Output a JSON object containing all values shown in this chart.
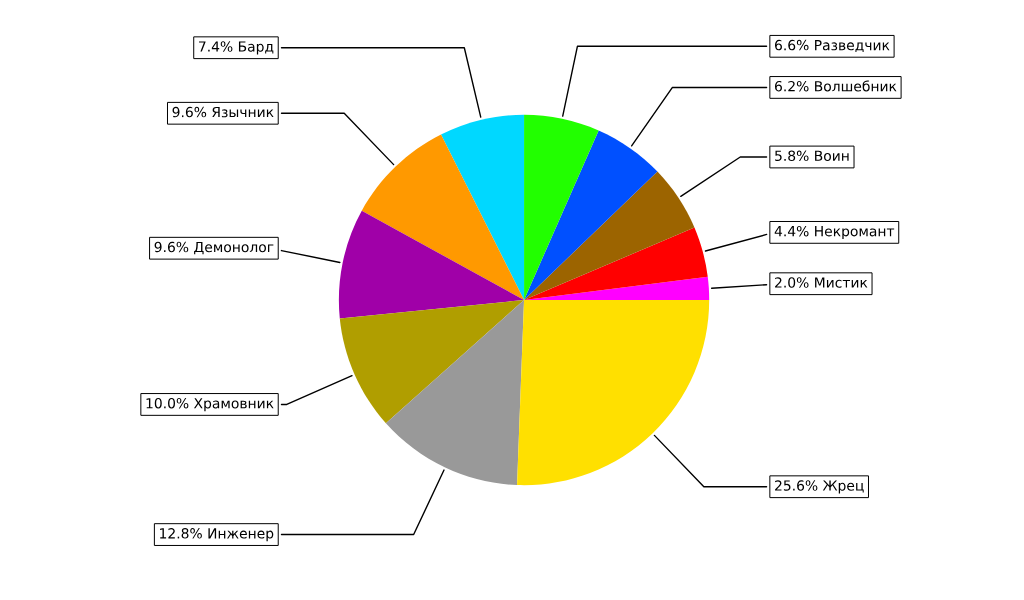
{
  "chart_data": {
    "type": "pie",
    "categories": [
      "2.0% Мистик",
      "4.4% Некромант",
      "5.8% Воин",
      "6.2% Волшебник",
      "6.6% Разведчик",
      "7.4% Бард",
      "9.6% Язычник",
      "9.6% Демонолог",
      "10.0% Храмовник",
      "12.8% Инженер",
      "25.6% Жрец"
    ],
    "values": [
      2.0,
      4.4,
      5.8,
      6.2,
      6.6,
      7.4,
      9.6,
      9.6,
      10.0,
      12.8,
      25.6
    ],
    "colors": [
      "#ff00ff",
      "#ff0000",
      "#9c6400",
      "#0050ff",
      "#22ff00",
      "#00d8ff",
      "#ff9900",
      "#a000a8",
      "#b09e00",
      "#999999",
      "#ffe000"
    ]
  }
}
